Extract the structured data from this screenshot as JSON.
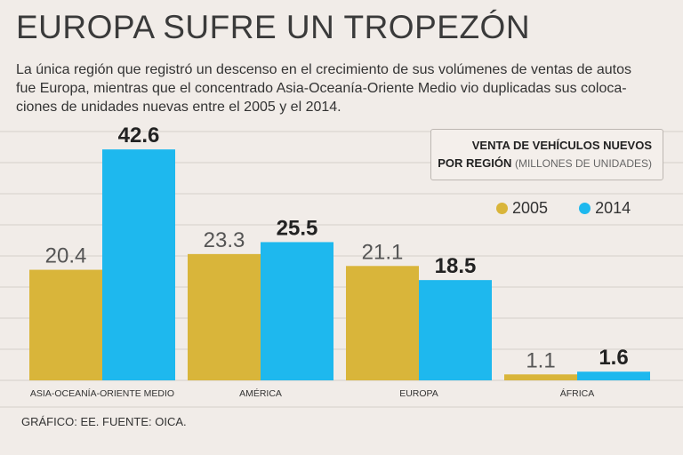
{
  "header": {
    "title": "EUROPA SUFRE UN TROPEZÓN",
    "subtitle_lines": [
      "La única región que registró un descenso en el crecimiento de sus volúmenes de ventas de autos",
      "fue Europa, mientras que el concentrado Asia-Oceanía-Oriente Medio vio duplicadas sus coloca-",
      "ciones de unidades nuevas entre el 2005 y el 2014."
    ]
  },
  "legend": {
    "line1": "VENTA DE VEHÍCULOS NUEVOS",
    "line2_bold": "POR REGIÓN",
    "line2_normal": "(MILLONES DE UNIDADES)"
  },
  "colors": {
    "2005": "#d9b53a",
    "2014": "#1eb8ee",
    "grid": "#d5cfca",
    "background": "#f1ece8"
  },
  "chart_data": {
    "type": "bar",
    "title": "VENTA DE VEHÍCULOS NUEVOS POR REGIÓN (MILLONES DE UNIDADES)",
    "categories": [
      "ASIA-OCEANÍA-ORIENTE MEDIO",
      "AMÉRICA",
      "EUROPA",
      "ÁFRICA"
    ],
    "series": [
      {
        "name": "2005",
        "values": [
          20.4,
          23.3,
          21.1,
          1.1
        ],
        "labels": [
          "20.4",
          "23.3",
          "21.1",
          "1.1"
        ]
      },
      {
        "name": "2014",
        "values": [
          42.6,
          25.5,
          18.5,
          1.6
        ],
        "labels": [
          "42.6",
          "25.5",
          "18.5",
          "1.6"
        ]
      }
    ],
    "ylim": [
      0,
      45
    ],
    "grid": true,
    "legend_position": "top-right"
  },
  "footer": {
    "source": "GRÁFICO: EE. FUENTE: OICA."
  }
}
